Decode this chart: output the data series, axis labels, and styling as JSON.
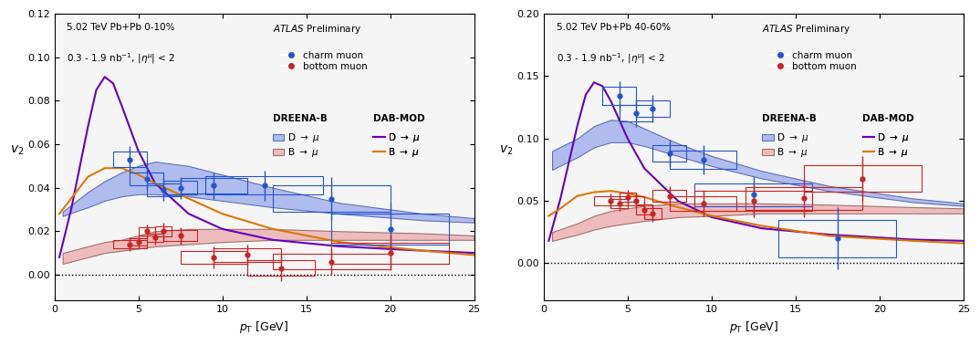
{
  "left_panel": {
    "title_line1": "5.02 TeV Pb+Pb 0-10%",
    "title_line2": "0.3 - 1.9 nb$^{-1}$, |$\\eta^\\mu$| < 2",
    "ylim": [
      -0.012,
      0.12
    ],
    "yticks": [
      0.0,
      0.02,
      0.04,
      0.06,
      0.08,
      0.1,
      0.12
    ],
    "charm_pts": {
      "x": [
        4.5,
        5.5,
        6.5,
        7.5,
        9.5,
        12.5,
        16.5,
        20.0
      ],
      "y": [
        0.053,
        0.044,
        0.039,
        0.04,
        0.041,
        0.041,
        0.035,
        0.021
      ],
      "yerr": [
        0.006,
        0.005,
        0.005,
        0.005,
        0.006,
        0.007,
        0.01,
        0.012
      ],
      "xerr": [
        1.0,
        1.0,
        1.0,
        1.0,
        2.0,
        3.5,
        3.5,
        3.5
      ]
    },
    "bottom_pts": {
      "x": [
        4.5,
        5.0,
        5.5,
        6.0,
        6.5,
        7.5,
        9.5,
        11.5,
        13.5,
        16.5,
        20.0
      ],
      "y": [
        0.014,
        0.015,
        0.02,
        0.017,
        0.02,
        0.018,
        0.008,
        0.009,
        0.003,
        0.006,
        0.01
      ],
      "yerr": [
        0.003,
        0.003,
        0.003,
        0.003,
        0.004,
        0.004,
        0.005,
        0.005,
        0.006,
        0.006,
        0.008
      ],
      "xerr": [
        1.0,
        0.5,
        0.5,
        0.5,
        0.5,
        1.0,
        2.0,
        2.0,
        2.0,
        3.5,
        3.5
      ]
    },
    "dreena_D_band": {
      "x": [
        0.5,
        2.0,
        3.0,
        4.0,
        5.0,
        6.0,
        8.0,
        10.0,
        13.0,
        17.0,
        22.0,
        25.0
      ],
      "y_low": [
        0.027,
        0.031,
        0.034,
        0.036,
        0.037,
        0.037,
        0.036,
        0.034,
        0.031,
        0.028,
        0.025,
        0.024
      ],
      "y_high": [
        0.029,
        0.038,
        0.043,
        0.047,
        0.05,
        0.052,
        0.05,
        0.046,
        0.04,
        0.033,
        0.028,
        0.026
      ]
    },
    "dreena_B_band": {
      "x": [
        0.5,
        2.0,
        3.0,
        4.0,
        5.0,
        6.0,
        8.0,
        10.0,
        13.0,
        17.0,
        22.0,
        25.0
      ],
      "y_low": [
        0.005,
        0.008,
        0.01,
        0.011,
        0.012,
        0.013,
        0.014,
        0.015,
        0.016,
        0.016,
        0.016,
        0.016
      ],
      "y_high": [
        0.01,
        0.013,
        0.015,
        0.016,
        0.018,
        0.02,
        0.021,
        0.021,
        0.021,
        0.02,
        0.019,
        0.018
      ]
    },
    "dab_D_line": {
      "x": [
        0.3,
        1.0,
        2.0,
        2.5,
        3.0,
        3.5,
        4.0,
        5.0,
        6.0,
        8.0,
        10.0,
        13.0,
        17.0,
        22.0,
        25.0
      ],
      "y": [
        0.008,
        0.03,
        0.068,
        0.085,
        0.091,
        0.088,
        0.078,
        0.057,
        0.042,
        0.028,
        0.021,
        0.016,
        0.013,
        0.011,
        0.01
      ]
    },
    "dab_B_line": {
      "x": [
        0.3,
        1.0,
        2.0,
        3.0,
        4.0,
        5.0,
        6.0,
        8.0,
        10.0,
        13.0,
        17.0,
        22.0,
        25.0
      ],
      "y": [
        0.028,
        0.035,
        0.045,
        0.049,
        0.049,
        0.046,
        0.042,
        0.035,
        0.028,
        0.021,
        0.015,
        0.011,
        0.009
      ]
    }
  },
  "right_panel": {
    "title_line1": "5.02 TeV Pb+Pb 40-60%",
    "title_line2": "0.3 - 1.9 nb$^{-1}$, |$\\eta^\\mu$| < 2",
    "ylim": [
      -0.03,
      0.2
    ],
    "yticks": [
      0.0,
      0.05,
      0.1,
      0.15,
      0.2
    ],
    "charm_pts": {
      "x": [
        4.5,
        5.5,
        6.5,
        7.5,
        9.5,
        12.5,
        17.5
      ],
      "y": [
        0.134,
        0.12,
        0.124,
        0.088,
        0.083,
        0.055,
        0.02
      ],
      "yerr": [
        0.012,
        0.011,
        0.011,
        0.011,
        0.012,
        0.015,
        0.025
      ],
      "xerr": [
        1.0,
        1.0,
        1.0,
        1.0,
        2.0,
        3.5,
        3.5
      ]
    },
    "bottom_pts": {
      "x": [
        4.0,
        4.5,
        5.0,
        5.5,
        6.0,
        6.5,
        7.5,
        9.5,
        12.5,
        15.5,
        19.0
      ],
      "y": [
        0.05,
        0.048,
        0.053,
        0.05,
        0.043,
        0.04,
        0.054,
        0.048,
        0.05,
        0.052,
        0.068
      ],
      "yerr": [
        0.006,
        0.006,
        0.006,
        0.006,
        0.007,
        0.007,
        0.008,
        0.01,
        0.013,
        0.015,
        0.018
      ],
      "xerr": [
        1.0,
        0.5,
        0.5,
        0.5,
        0.5,
        0.5,
        1.0,
        2.0,
        3.5,
        3.5,
        3.5
      ]
    },
    "dreena_D_band": {
      "x": [
        0.5,
        2.0,
        3.0,
        4.0,
        5.0,
        6.0,
        8.0,
        10.0,
        13.0,
        17.0,
        22.0,
        25.0
      ],
      "y_low": [
        0.075,
        0.085,
        0.093,
        0.097,
        0.097,
        0.094,
        0.086,
        0.078,
        0.068,
        0.058,
        0.049,
        0.046
      ],
      "y_high": [
        0.09,
        0.1,
        0.11,
        0.115,
        0.114,
        0.108,
        0.096,
        0.086,
        0.074,
        0.062,
        0.052,
        0.048
      ]
    },
    "dreena_B_band": {
      "x": [
        0.5,
        2.0,
        3.0,
        4.0,
        5.0,
        6.0,
        8.0,
        10.0,
        13.0,
        17.0,
        22.0,
        25.0
      ],
      "y_low": [
        0.018,
        0.023,
        0.027,
        0.03,
        0.032,
        0.034,
        0.037,
        0.038,
        0.04,
        0.04,
        0.04,
        0.04
      ],
      "y_high": [
        0.025,
        0.032,
        0.038,
        0.042,
        0.044,
        0.046,
        0.048,
        0.048,
        0.048,
        0.047,
        0.045,
        0.044
      ]
    },
    "dab_D_line": {
      "x": [
        0.3,
        1.0,
        2.0,
        2.5,
        3.0,
        3.5,
        4.0,
        5.0,
        6.0,
        8.0,
        10.0,
        13.0,
        17.0,
        22.0,
        25.0
      ],
      "y": [
        0.018,
        0.052,
        0.11,
        0.135,
        0.145,
        0.142,
        0.13,
        0.1,
        0.076,
        0.05,
        0.037,
        0.028,
        0.023,
        0.019,
        0.018
      ]
    },
    "dab_B_line": {
      "x": [
        0.3,
        1.0,
        2.0,
        3.0,
        4.0,
        5.0,
        6.0,
        8.0,
        10.0,
        13.0,
        17.0,
        22.0,
        25.0
      ],
      "y": [
        0.038,
        0.044,
        0.054,
        0.057,
        0.058,
        0.056,
        0.053,
        0.045,
        0.038,
        0.03,
        0.022,
        0.018,
        0.016
      ]
    }
  },
  "colors": {
    "charm_blue": "#2255cc",
    "bottom_red": "#cc2222",
    "dreena_D_face": "#b0bcee",
    "dreena_D_edge": "#6070b8",
    "dreena_B_face": "#eebcbc",
    "dreena_B_edge": "#a07070",
    "dab_D": "#6600bb",
    "dab_B": "#dd7700"
  },
  "bg_color": "#f0f0f0"
}
